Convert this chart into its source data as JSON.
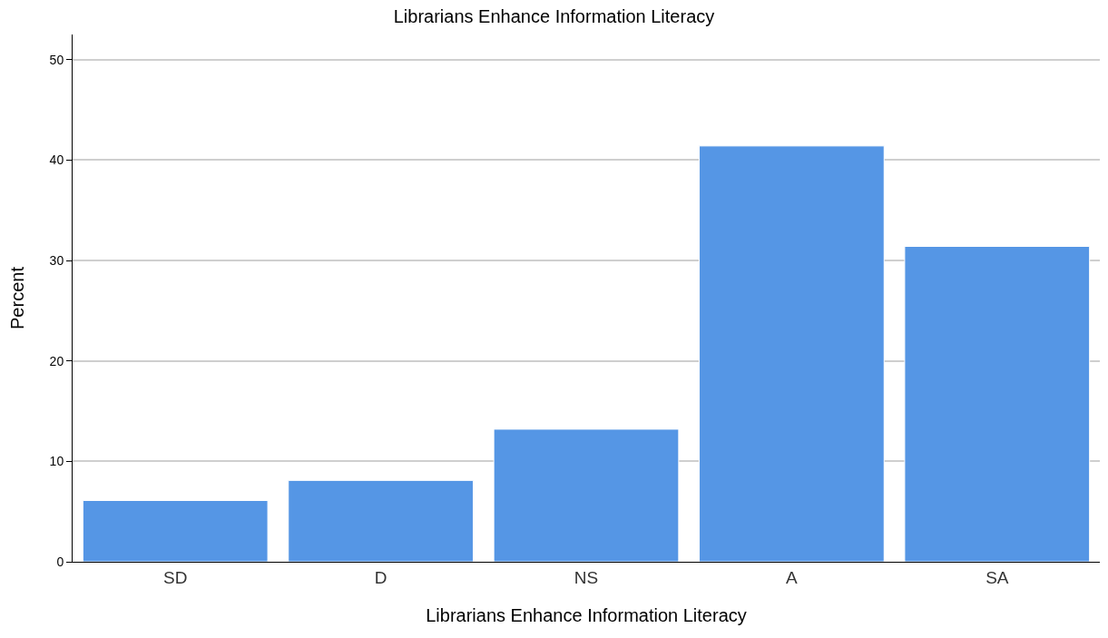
{
  "chart_data": {
    "type": "bar",
    "title": "Librarians Enhance Information Literacy",
    "xlabel": "Librarians Enhance Information Literacy",
    "ylabel": "Percent",
    "categories": [
      "SD",
      "D",
      "NS",
      "A",
      "SA"
    ],
    "values": [
      6.1,
      8.1,
      13.2,
      41.4,
      31.4
    ],
    "color": "#5596e5",
    "ylim": [
      0,
      52.5
    ],
    "yticks": [
      0,
      10,
      20,
      30,
      40,
      50
    ],
    "grid": "y"
  }
}
